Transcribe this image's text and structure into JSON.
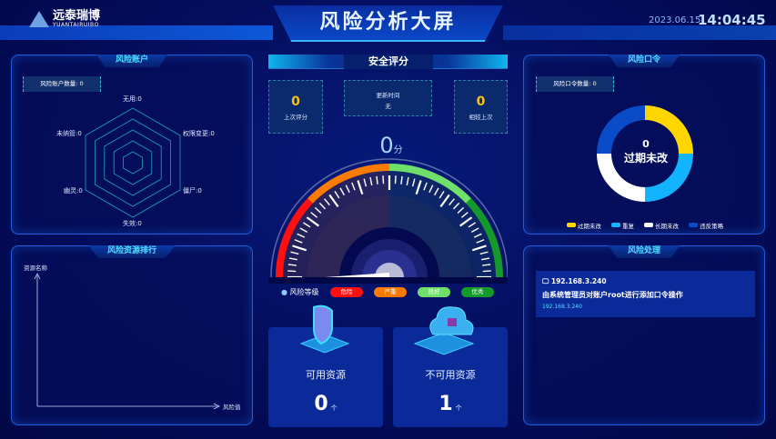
{
  "header": {
    "logo_name": "远泰瑞博",
    "logo_sub": "YUANTAIRUIBO",
    "title": "风险分析大屏",
    "date": "2023.06.15",
    "time": "14:04:45"
  },
  "risk_accounts": {
    "title": "风险账户",
    "count_label": "风险账户数量: 0",
    "radar": [
      {
        "label": "无用:0",
        "value": 0
      },
      {
        "label": "权限变更:0",
        "value": 0
      },
      {
        "label": "僵尸:0",
        "value": 0
      },
      {
        "label": "失效:0",
        "value": 0
      },
      {
        "label": "幽灵:0",
        "value": 0
      },
      {
        "label": "未纳管:0",
        "value": 0
      }
    ]
  },
  "resource_rank": {
    "title": "风险资源排行",
    "ylabel": "资源名称",
    "xlabel": "风险值"
  },
  "security_score": {
    "title": "安全评分",
    "last_score": "0",
    "last_score_label": "上次评分",
    "update_label": "更新时间",
    "update_value": "无",
    "compare": "0",
    "compare_label": "相较上次",
    "score": "0",
    "score_unit": "分",
    "score_value": 0,
    "level_label": "风险等级",
    "levels": [
      {
        "label": "危险",
        "color": "#ff1010"
      },
      {
        "label": "严重",
        "color": "#ff7a00"
      },
      {
        "label": "良好",
        "color": "#6fe06a"
      },
      {
        "label": "优秀",
        "color": "#139a2a"
      }
    ]
  },
  "resources": {
    "available_label": "可用资源",
    "available": "0",
    "unavailable_label": "不可用资源",
    "unavailable": "1",
    "unit": "个"
  },
  "risk_passwords": {
    "title": "风险口令",
    "count_label": "风险口令数量: 0",
    "center_value": "0",
    "center_label": "过期未改",
    "legend": [
      {
        "label": "过期未改",
        "color": "#ffd600",
        "value": 0
      },
      {
        "label": "重复",
        "color": "#12b4ff",
        "value": 0
      },
      {
        "label": "长期未改",
        "color": "#ffffff",
        "value": 0
      },
      {
        "label": "违反策略",
        "color": "#0a4cc8",
        "value": 0
      }
    ]
  },
  "risk_handling": {
    "title": "风险处理",
    "item": {
      "host": "192.168.3.240",
      "desc": "由系统管理员对账户root进行添加口令操作",
      "ip": "192.168.3.240"
    }
  }
}
